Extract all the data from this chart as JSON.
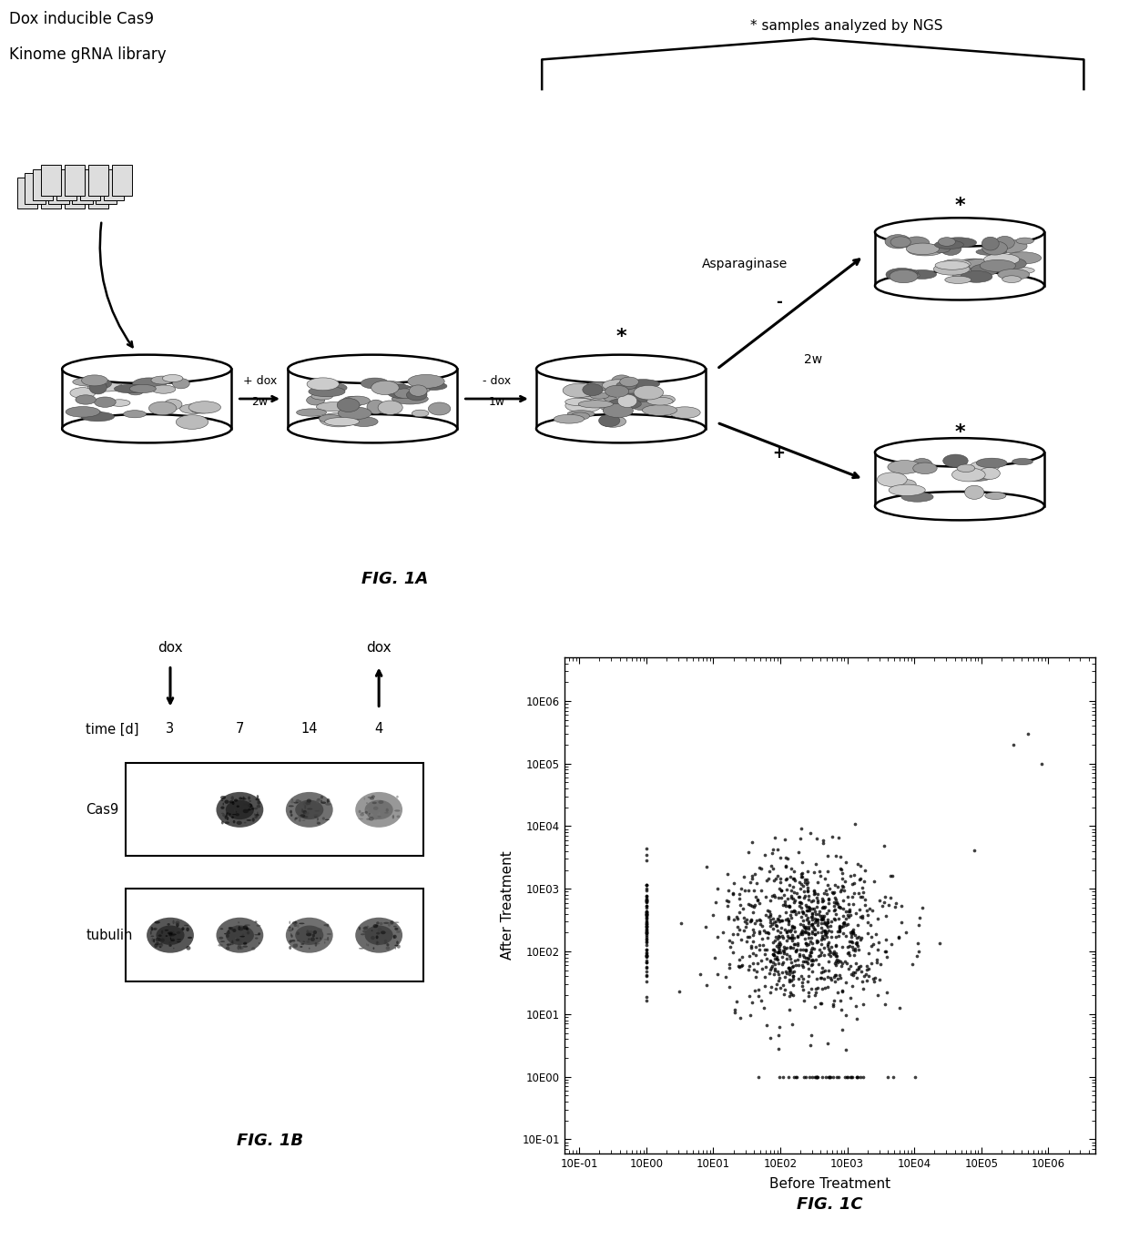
{
  "fig1a_title1": "Dox inducible Cas9",
  "fig1a_title2": "Kinome gRNA library",
  "fig1a_ngs_label": "* samples analyzed by NGS",
  "fig1a_asparaginase": "Asparaginase",
  "fig1a_dox_plus_line1": "+ dox",
  "fig1a_dox_plus_line2": "2w",
  "fig1a_dox_minus_line1": "- dox",
  "fig1a_dox_minus_line2": "1w",
  "fig1a_2w": "2w",
  "fig1a_minus": "-",
  "fig1a_plus": "+",
  "fig1a_label": "FIG. 1A",
  "fig1b_label": "FIG. 1B",
  "fig1c_label": "FIG. 1C",
  "fig1b_time_label": "time [d]",
  "fig1b_cas9_label": "Cas9",
  "fig1b_tubulin_label": "tubulin",
  "fig1b_dox_label": "dox",
  "fig1b_time_points": [
    "3",
    "7",
    "14",
    "4"
  ],
  "fig1c_xlabel": "Before Treatment",
  "fig1c_ylabel": "After Treatment",
  "fig1c_xtick_labels": [
    "10E-01",
    "10E00",
    "10E01",
    "10E02",
    "10E03",
    "10E04",
    "10E05",
    "10E06"
  ],
  "fig1c_ytick_labels": [
    "10E-01",
    "10E00",
    "10E01",
    "10E02",
    "10E03",
    "10E04",
    "10E05",
    "10E06"
  ],
  "background_color": "#ffffff",
  "text_color": "#000000",
  "seed": 42
}
